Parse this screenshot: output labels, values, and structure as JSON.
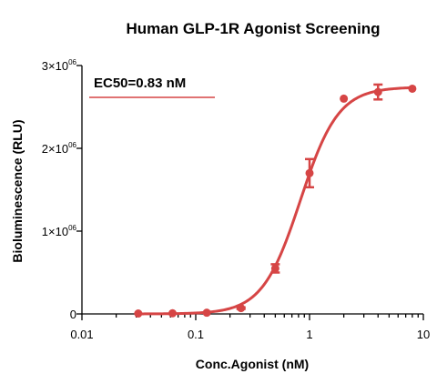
{
  "chart_data": {
    "type": "scatter",
    "title": "Human GLP-1R Agonist Screening",
    "xlabel": "Conc.Agonist (nM)",
    "ylabel": "Bioluminescence (RLU)",
    "x_scale": "log",
    "xlim": [
      0.01,
      10
    ],
    "ylim": [
      0,
      3000000
    ],
    "x_ticks": [
      {
        "value": 0.01,
        "label": "0.01"
      },
      {
        "value": 0.1,
        "label": "0.1"
      },
      {
        "value": 1,
        "label": "1"
      },
      {
        "value": 10,
        "label": "10"
      }
    ],
    "y_ticks": [
      {
        "value": 0,
        "label": "0",
        "exp": ""
      },
      {
        "value": 1000000,
        "label": "1×10",
        "exp": "06"
      },
      {
        "value": 2000000,
        "label": "2×10",
        "exp": "06"
      },
      {
        "value": 3000000,
        "label": "3×10",
        "exp": "06"
      }
    ],
    "legend_text": "EC50=0.83 nM",
    "legend_position": "top-left",
    "color": "#d64545",
    "grid": false,
    "series": [
      {
        "points": [
          {
            "x": 0.03125,
            "y": 5000,
            "err": 0
          },
          {
            "x": 0.0625,
            "y": 8000,
            "err": 0
          },
          {
            "x": 0.125,
            "y": 15000,
            "err": 0
          },
          {
            "x": 0.25,
            "y": 70000,
            "err": 10000
          },
          {
            "x": 0.5,
            "y": 550000,
            "err": 50000
          },
          {
            "x": 1,
            "y": 1700000,
            "err": 170000
          },
          {
            "x": 2,
            "y": 2600000,
            "err": 0
          },
          {
            "x": 4,
            "y": 2680000,
            "err": 90000
          },
          {
            "x": 8,
            "y": 2720000,
            "err": 0
          }
        ]
      }
    ],
    "fit": {
      "bottom": 0,
      "top": 2740000,
      "ec50": 0.83,
      "hill": 2.6
    }
  }
}
